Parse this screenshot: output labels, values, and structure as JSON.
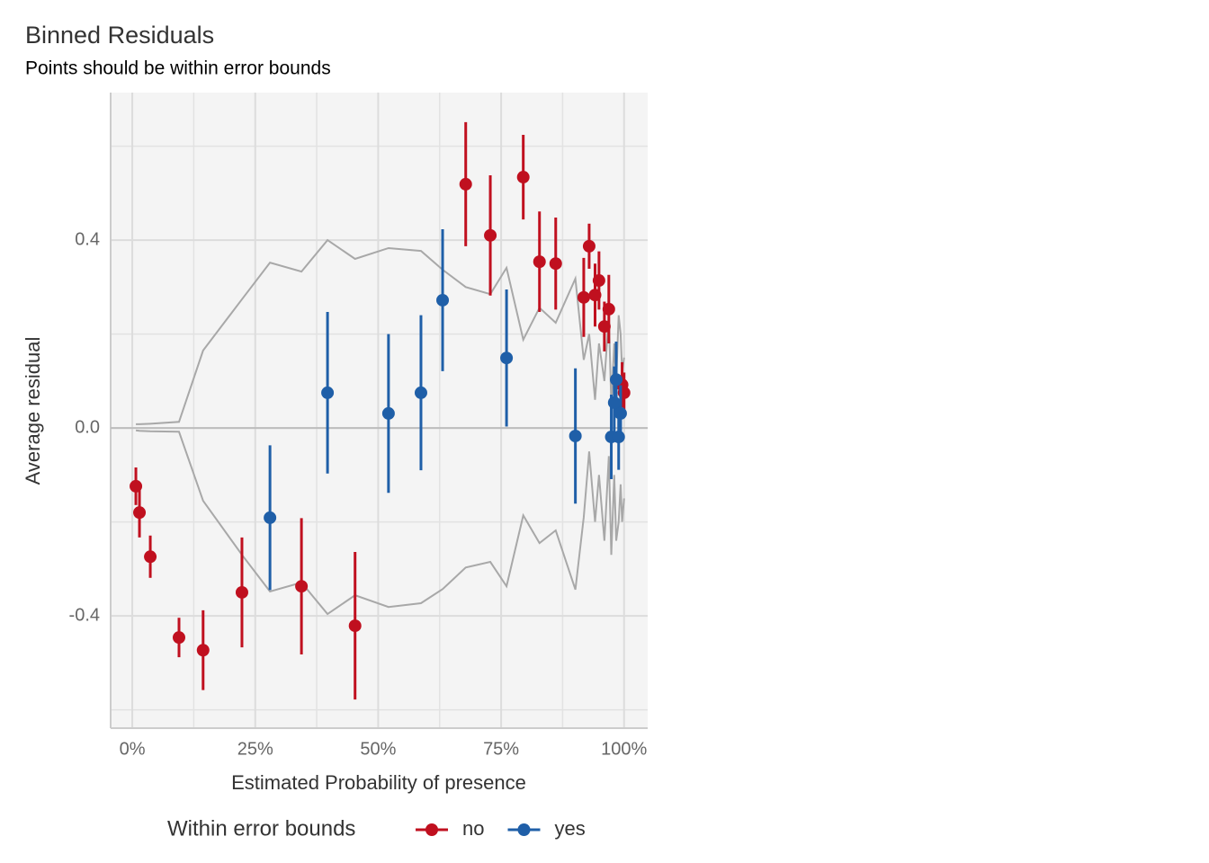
{
  "chart_data": {
    "type": "binned_residuals",
    "title": "Binned Residuals",
    "subtitle": "Points should be within error bounds",
    "x_label": "Estimated Probability of presence",
    "y_label": "Average residual",
    "legend_title": "Within error bounds",
    "xlim": [
      -4.4,
      104.8
    ],
    "ylim": [
      -0.639,
      0.714
    ],
    "xticks": [
      {
        "value": 0,
        "label": "0%"
      },
      {
        "value": 25,
        "label": "25%"
      },
      {
        "value": 50,
        "label": "50%"
      },
      {
        "value": 75,
        "label": "75%"
      },
      {
        "value": 100,
        "label": "100%"
      }
    ],
    "yticks": [
      -0.4,
      {
        "value": 0,
        "label": "0.0"
      },
      0.4
    ],
    "minor_xticks": [
      12.5,
      37.5,
      62.5,
      87.5
    ],
    "minor_yticks": [
      -0.6,
      -0.2,
      0.2,
      0.6
    ],
    "grid": true,
    "reference_line": 0,
    "bounds": {
      "color": "#a8a8a8",
      "x": [
        0.73,
        1.46,
        3.66,
        9.5,
        14.4,
        22.3,
        28,
        34.4,
        39.7,
        45.3,
        52.1,
        58.7,
        63.1,
        67.8,
        72.8,
        76.1,
        79.5,
        82.8,
        86.1,
        90.1,
        91.8,
        92.9,
        94.1,
        94.9,
        96,
        96.9,
        97.4,
        98,
        98.4,
        98.9,
        99.3,
        99.6,
        100
      ],
      "upper": [
        0.008,
        0.008,
        0.009,
        0.013,
        0.165,
        0.274,
        0.352,
        0.333,
        0.4,
        0.36,
        0.383,
        0.377,
        0.337,
        0.3,
        0.285,
        0.341,
        0.188,
        0.256,
        0.224,
        0.318,
        0.145,
        0.2,
        0.06,
        0.18,
        0.1,
        0.24,
        0.05,
        0.18,
        0.1,
        0.24,
        0.2,
        0.12,
        0.15
      ],
      "lower": [
        -0.005,
        -0.006,
        -0.007,
        -0.008,
        -0.155,
        -0.27,
        -0.348,
        -0.329,
        -0.396,
        -0.356,
        -0.381,
        -0.373,
        -0.343,
        -0.297,
        -0.285,
        -0.337,
        -0.186,
        -0.245,
        -0.218,
        -0.344,
        -0.19,
        -0.05,
        -0.2,
        -0.1,
        -0.24,
        -0.06,
        -0.27,
        -0.1,
        -0.24,
        -0.2,
        -0.12,
        -0.2,
        -0.15
      ]
    },
    "series": [
      {
        "name": "no",
        "color": "#c0101f",
        "x": [
          0.73,
          1.46,
          3.66,
          9.5,
          14.4,
          22.3,
          34.4,
          45.3,
          67.8,
          72.8,
          79.5,
          82.8,
          86.1,
          91.8,
          92.9,
          94.1,
          94.9,
          96,
          96.9,
          99.6,
          100
        ],
        "values": [
          -0.124,
          -0.18,
          -0.274,
          -0.446,
          -0.473,
          -0.35,
          -0.337,
          -0.421,
          0.519,
          0.41,
          0.534,
          0.354,
          0.35,
          0.278,
          0.387,
          0.283,
          0.314,
          0.216,
          0.253,
          0.092,
          0.075
        ],
        "errors": [
          0.04,
          0.053,
          0.045,
          0.042,
          0.085,
          0.117,
          0.145,
          0.157,
          0.132,
          0.128,
          0.09,
          0.107,
          0.098,
          0.084,
          0.048,
          0.067,
          0.062,
          0.053,
          0.073,
          0.048,
          0.043
        ]
      },
      {
        "name": "yes",
        "color": "#1f5fa8",
        "x": [
          28,
          39.7,
          52.1,
          58.7,
          63.1,
          76.1,
          90.1,
          97.4,
          98,
          98.4,
          98.9,
          99.3
        ],
        "values": [
          -0.191,
          0.075,
          0.031,
          0.075,
          0.272,
          0.149,
          -0.017,
          -0.019,
          0.054,
          0.103,
          -0.019,
          0.031
        ],
        "errors": [
          0.154,
          0.172,
          0.169,
          0.165,
          0.151,
          0.146,
          0.144,
          0.09,
          0.077,
          0.081,
          0.07,
          0.06
        ]
      }
    ]
  }
}
